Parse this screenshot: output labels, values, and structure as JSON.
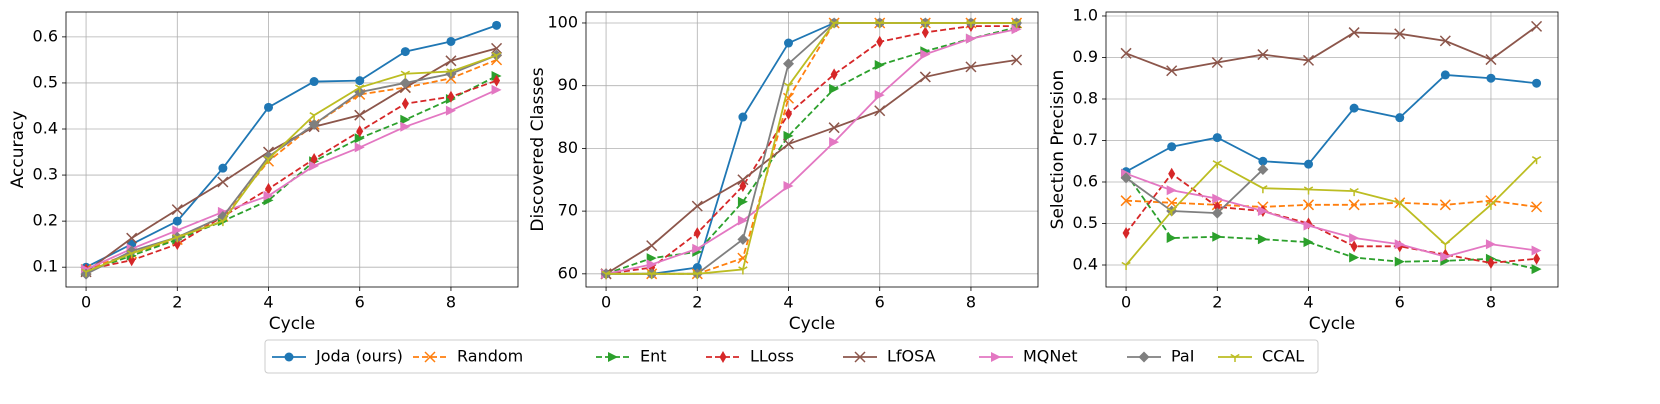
{
  "chart_data": [
    {
      "type": "line",
      "ylabel": "Accuracy",
      "xlabel": "Cycle",
      "x": [
        0,
        1,
        2,
        3,
        4,
        5,
        6,
        7,
        8,
        9
      ],
      "xlim": [
        -0.44,
        9.47
      ],
      "xticks": [
        0,
        2,
        4,
        6,
        8
      ],
      "ylim": [
        0.057,
        0.654
      ],
      "yticks": [
        0.1,
        0.2,
        0.3,
        0.4,
        0.5,
        0.6
      ],
      "grid": true,
      "series": [
        {
          "name": "Joda (ours)",
          "color": "#1f77b4",
          "marker": "circle",
          "dashed": false,
          "values": [
            0.1,
            0.15,
            0.2,
            0.315,
            0.447,
            0.503,
            0.505,
            0.568,
            0.59,
            0.625
          ]
        },
        {
          "name": "Random",
          "color": "#ff7f0e",
          "marker": "x",
          "dashed": true,
          "values": [
            0.095,
            0.13,
            0.16,
            0.21,
            0.33,
            0.41,
            0.475,
            0.49,
            0.51,
            0.55
          ]
        },
        {
          "name": "Ent",
          "color": "#2ca02c",
          "marker": "triangle",
          "dashed": true,
          "values": [
            0.09,
            0.125,
            0.16,
            0.2,
            0.245,
            0.33,
            0.38,
            0.42,
            0.465,
            0.515
          ]
        },
        {
          "name": "LLoss",
          "color": "#d62728",
          "marker": "thin-diamond",
          "dashed": true,
          "values": [
            0.095,
            0.115,
            0.15,
            0.21,
            0.27,
            0.335,
            0.395,
            0.455,
            0.47,
            0.505
          ]
        },
        {
          "name": "LfOSA",
          "color": "#8c564b",
          "marker": "x",
          "dashed": false,
          "values": [
            0.09,
            0.163,
            0.225,
            0.285,
            0.35,
            0.405,
            0.43,
            0.49,
            0.548,
            0.575
          ]
        },
        {
          "name": "MQNet",
          "color": "#e377c2",
          "marker": "triangle",
          "dashed": false,
          "values": [
            0.095,
            0.14,
            0.18,
            0.22,
            0.255,
            0.32,
            0.36,
            0.405,
            0.44,
            0.485
          ]
        },
        {
          "name": "PaI",
          "color": "#7f7f7f",
          "marker": "diamond",
          "dashed": false,
          "values": [
            0.085,
            0.135,
            0.165,
            0.21,
            0.34,
            0.41,
            0.48,
            0.5,
            0.52,
            0.56
          ]
        },
        {
          "name": "CCAL",
          "color": "#bcbd22",
          "marker": "tri",
          "dashed": false,
          "values": [
            0.09,
            0.13,
            0.165,
            0.2,
            0.335,
            0.43,
            0.49,
            0.52,
            0.525,
            0.56
          ]
        }
      ]
    },
    {
      "type": "line",
      "ylabel": "Discovered Classes",
      "xlabel": "Cycle",
      "x": [
        0,
        1,
        2,
        3,
        4,
        5,
        6,
        7,
        8,
        9
      ],
      "xlim": [
        -0.44,
        9.47
      ],
      "xticks": [
        0,
        2,
        4,
        6,
        8
      ],
      "ylim": [
        57.9,
        101.75
      ],
      "yticks": [
        60,
        70,
        80,
        90,
        100
      ],
      "grid": true,
      "series": [
        {
          "name": "Joda (ours)",
          "color": "#1f77b4",
          "marker": "circle",
          "dashed": false,
          "values": [
            60,
            60,
            61,
            85,
            96.8,
            100,
            100,
            100,
            100,
            100
          ]
        },
        {
          "name": "Random",
          "color": "#ff7f0e",
          "marker": "x",
          "dashed": true,
          "values": [
            60,
            60,
            60,
            62.5,
            88,
            100,
            100,
            100,
            100,
            100
          ]
        },
        {
          "name": "Ent",
          "color": "#2ca02c",
          "marker": "triangle",
          "dashed": true,
          "values": [
            60,
            62.5,
            63.5,
            71.5,
            82,
            89.5,
            93.3,
            95.5,
            97.5,
            99.3
          ]
        },
        {
          "name": "LLoss",
          "color": "#d62728",
          "marker": "thin-diamond",
          "dashed": true,
          "values": [
            60,
            61,
            66.5,
            74,
            85.5,
            91.8,
            97,
            98.5,
            99.5,
            99.5
          ]
        },
        {
          "name": "LfOSA",
          "color": "#8c564b",
          "marker": "x",
          "dashed": false,
          "values": [
            60,
            64.5,
            70.8,
            75,
            80.7,
            83.3,
            86,
            91.4,
            93,
            94.1
          ]
        },
        {
          "name": "MQNet",
          "color": "#e377c2",
          "marker": "triangle",
          "dashed": false,
          "values": [
            60,
            61.5,
            64,
            68.5,
            74,
            81,
            88.5,
            95,
            97.5,
            99
          ]
        },
        {
          "name": "PaI",
          "color": "#7f7f7f",
          "marker": "diamond",
          "dashed": false,
          "values": [
            60,
            60,
            60,
            65.5,
            93.5,
            100,
            100,
            100,
            100,
            100
          ]
        },
        {
          "name": "CCAL",
          "color": "#bcbd22",
          "marker": "tri",
          "dashed": false,
          "values": [
            60,
            60,
            60,
            60.7,
            90,
            100,
            100,
            100,
            100,
            100
          ]
        }
      ]
    },
    {
      "type": "line",
      "ylabel": "Selection Precision",
      "xlabel": "Cycle",
      "x": [
        0,
        1,
        2,
        3,
        4,
        5,
        6,
        7,
        8,
        9
      ],
      "xlim": [
        -0.44,
        9.47
      ],
      "xticks": [
        0,
        2,
        4,
        6,
        8
      ],
      "ylim": [
        0.347,
        1.0096
      ],
      "yticks": [
        0.4,
        0.5,
        0.6,
        0.7,
        0.8,
        0.9,
        {
          "value": 1,
          "label": "1.0"
        }
      ],
      "grid": true,
      "series": [
        {
          "name": "Joda (ours)",
          "color": "#1f77b4",
          "marker": "circle",
          "dashed": false,
          "values": [
            0.625,
            0.685,
            0.707,
            0.65,
            0.643,
            0.778,
            0.755,
            0.858,
            0.85,
            0.838
          ]
        },
        {
          "name": "Random",
          "color": "#ff7f0e",
          "marker": "x",
          "dashed": true,
          "values": [
            0.555,
            0.55,
            0.545,
            0.54,
            0.545,
            0.545,
            0.55,
            0.545,
            0.555,
            0.54
          ]
        },
        {
          "name": "Ent",
          "color": "#2ca02c",
          "marker": "triangle",
          "dashed": true,
          "values": [
            0.62,
            0.465,
            0.468,
            0.462,
            0.455,
            0.418,
            0.408,
            0.41,
            0.415,
            0.39
          ]
        },
        {
          "name": "LLoss",
          "color": "#d62728",
          "marker": "thin-diamond",
          "dashed": true,
          "values": [
            0.477,
            0.62,
            0.54,
            0.53,
            0.5,
            0.445,
            0.445,
            0.425,
            0.405,
            0.415
          ]
        },
        {
          "name": "LfOSA",
          "color": "#8c564b",
          "marker": "x",
          "dashed": false,
          "values": [
            0.91,
            0.868,
            0.888,
            0.907,
            0.893,
            0.96,
            0.957,
            0.94,
            0.895,
            0.975
          ]
        },
        {
          "name": "MQNet",
          "color": "#e377c2",
          "marker": "triangle",
          "dashed": false,
          "values": [
            0.62,
            0.58,
            0.56,
            0.53,
            0.495,
            0.465,
            0.45,
            0.42,
            0.45,
            0.435
          ]
        },
        {
          "name": "PaI",
          "color": "#7f7f7f",
          "marker": "diamond",
          "dashed": false,
          "values": [
            0.61,
            0.53,
            0.525,
            0.63,
            null,
            null,
            null,
            null,
            null,
            null
          ]
        },
        {
          "name": "CCAL",
          "color": "#bcbd22",
          "marker": "tri",
          "dashed": false,
          "values": [
            0.4,
            0.53,
            0.645,
            0.585,
            0.582,
            0.578,
            0.55,
            0.45,
            0.545,
            0.655
          ]
        }
      ]
    }
  ]
}
